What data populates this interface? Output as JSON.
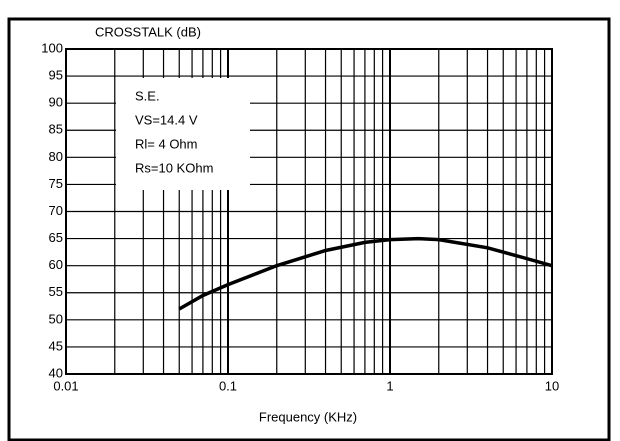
{
  "chart_data": {
    "type": "line",
    "ylabel": "CROSSTALK (dB)",
    "xlabel": "Frequency (KHz)",
    "annotations": [
      "S.E.",
      "VS=14.4 V",
      "Rl= 4 Ohm",
      "Rs=10 KOhm"
    ],
    "x": [
      0.05,
      0.07,
      0.1,
      0.2,
      0.4,
      0.7,
      1,
      1.5,
      2,
      4,
      7,
      10
    ],
    "series": [
      {
        "name": "Crosstalk",
        "color": "#000000",
        "values": [
          52,
          54.5,
          56.5,
          60,
          62.8,
          64.3,
          64.8,
          65,
          64.8,
          63.3,
          61.3,
          60
        ]
      }
    ],
    "xscale": "log",
    "xlim": [
      0.01,
      10
    ],
    "xticks": [
      0.01,
      0.1,
      1,
      10
    ],
    "ylim": [
      40,
      100
    ],
    "yticks": [
      40,
      45,
      50,
      55,
      60,
      65,
      70,
      75,
      80,
      85,
      90,
      95,
      100
    ],
    "grid": true,
    "minor_grid": true
  }
}
